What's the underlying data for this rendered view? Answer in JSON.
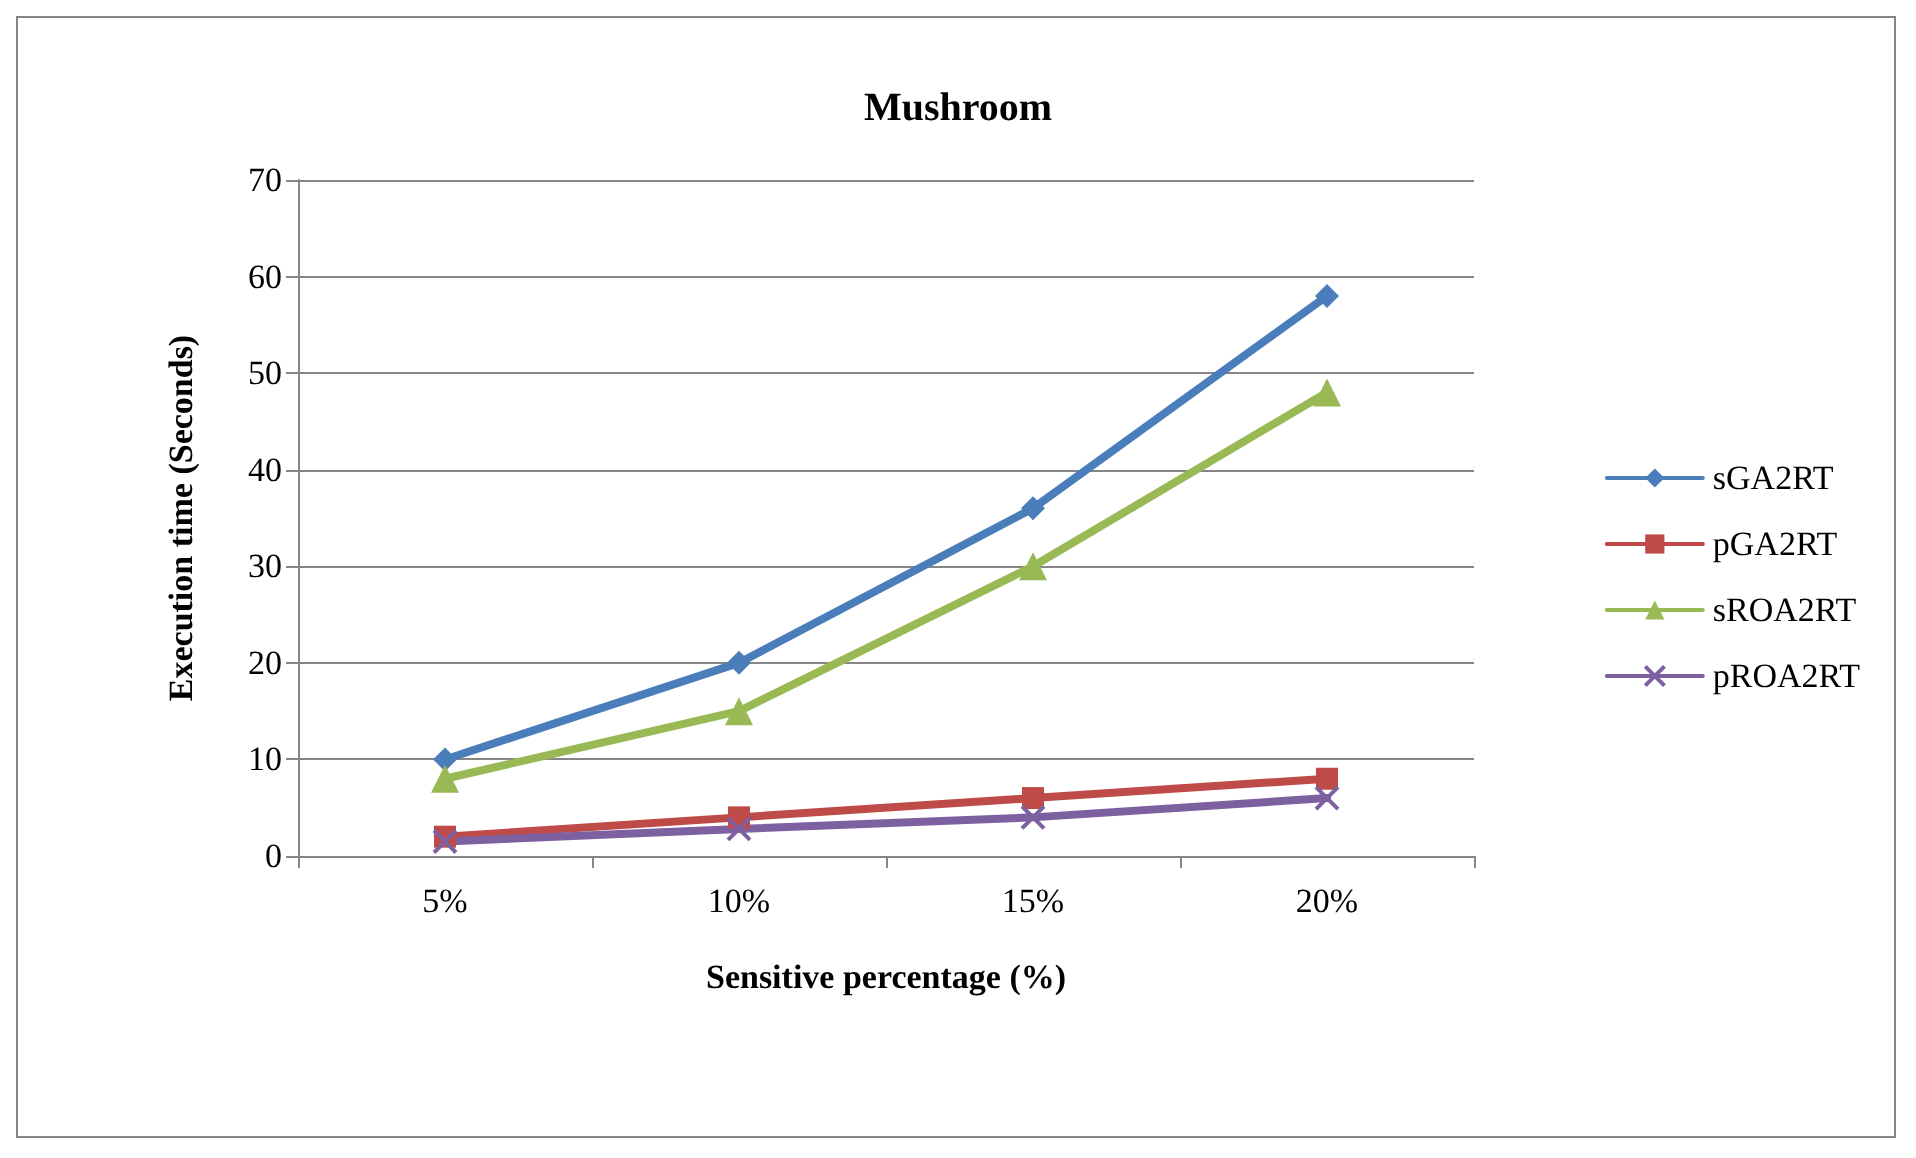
{
  "chart_data": {
    "type": "line",
    "title": "Mushroom",
    "xlabel": "Sensitive percentage (%)",
    "ylabel": "Execution time (Seconds)",
    "categories": [
      "5%",
      "10%",
      "15%",
      "20%"
    ],
    "series": [
      {
        "name": "sGA2RT",
        "color": "#4a7ebb",
        "marker": "diamond",
        "values": [
          10,
          20,
          36,
          58
        ]
      },
      {
        "name": "pGA2RT",
        "color": "#be4b48",
        "marker": "square",
        "values": [
          2,
          4,
          6,
          8
        ]
      },
      {
        "name": "sROA2RT",
        "color": "#98b954",
        "marker": "triangle",
        "values": [
          8,
          15,
          30,
          48
        ]
      },
      {
        "name": "pROA2RT",
        "color": "#7d60a0",
        "marker": "cross",
        "values": [
          1.5,
          2.8,
          4,
          6
        ]
      }
    ],
    "ylim": [
      0,
      70
    ],
    "yticks": [
      0,
      10,
      20,
      30,
      40,
      50,
      60,
      70
    ],
    "grid": "y",
    "legend": "right",
    "line_style": "solid"
  }
}
